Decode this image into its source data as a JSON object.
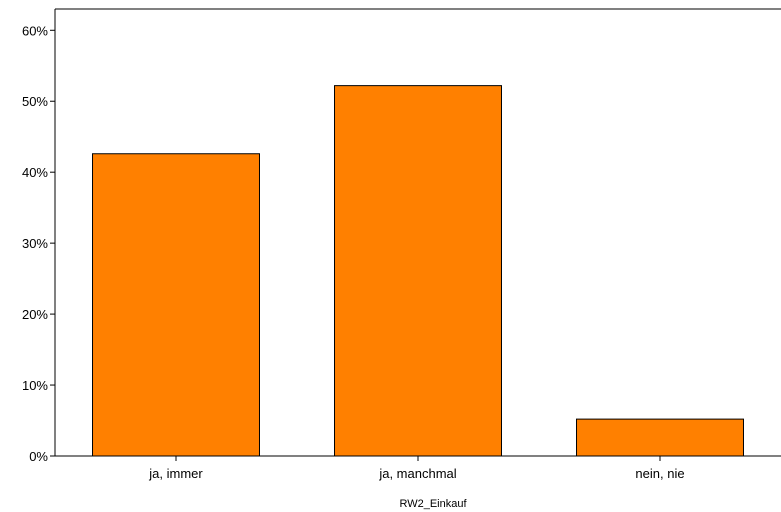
{
  "chart_data": {
    "type": "bar",
    "categories": [
      "ja, immer",
      "ja, manchmal",
      "nein, nie"
    ],
    "values": [
      42.6,
      52.2,
      5.2
    ],
    "value_unit": "%",
    "title": "",
    "xlabel": "RW2_Einkauf",
    "ylabel": "",
    "ylim": [
      0,
      63
    ],
    "yticks": [
      0,
      10,
      20,
      30,
      40,
      50,
      60
    ],
    "ytick_labels": [
      "0%",
      "10%",
      "20%",
      "30%",
      "40%",
      "50%",
      "60%"
    ],
    "grid": false,
    "legend": "none",
    "bar_color": "#ff8000",
    "bar_edge_color": "#000000"
  }
}
